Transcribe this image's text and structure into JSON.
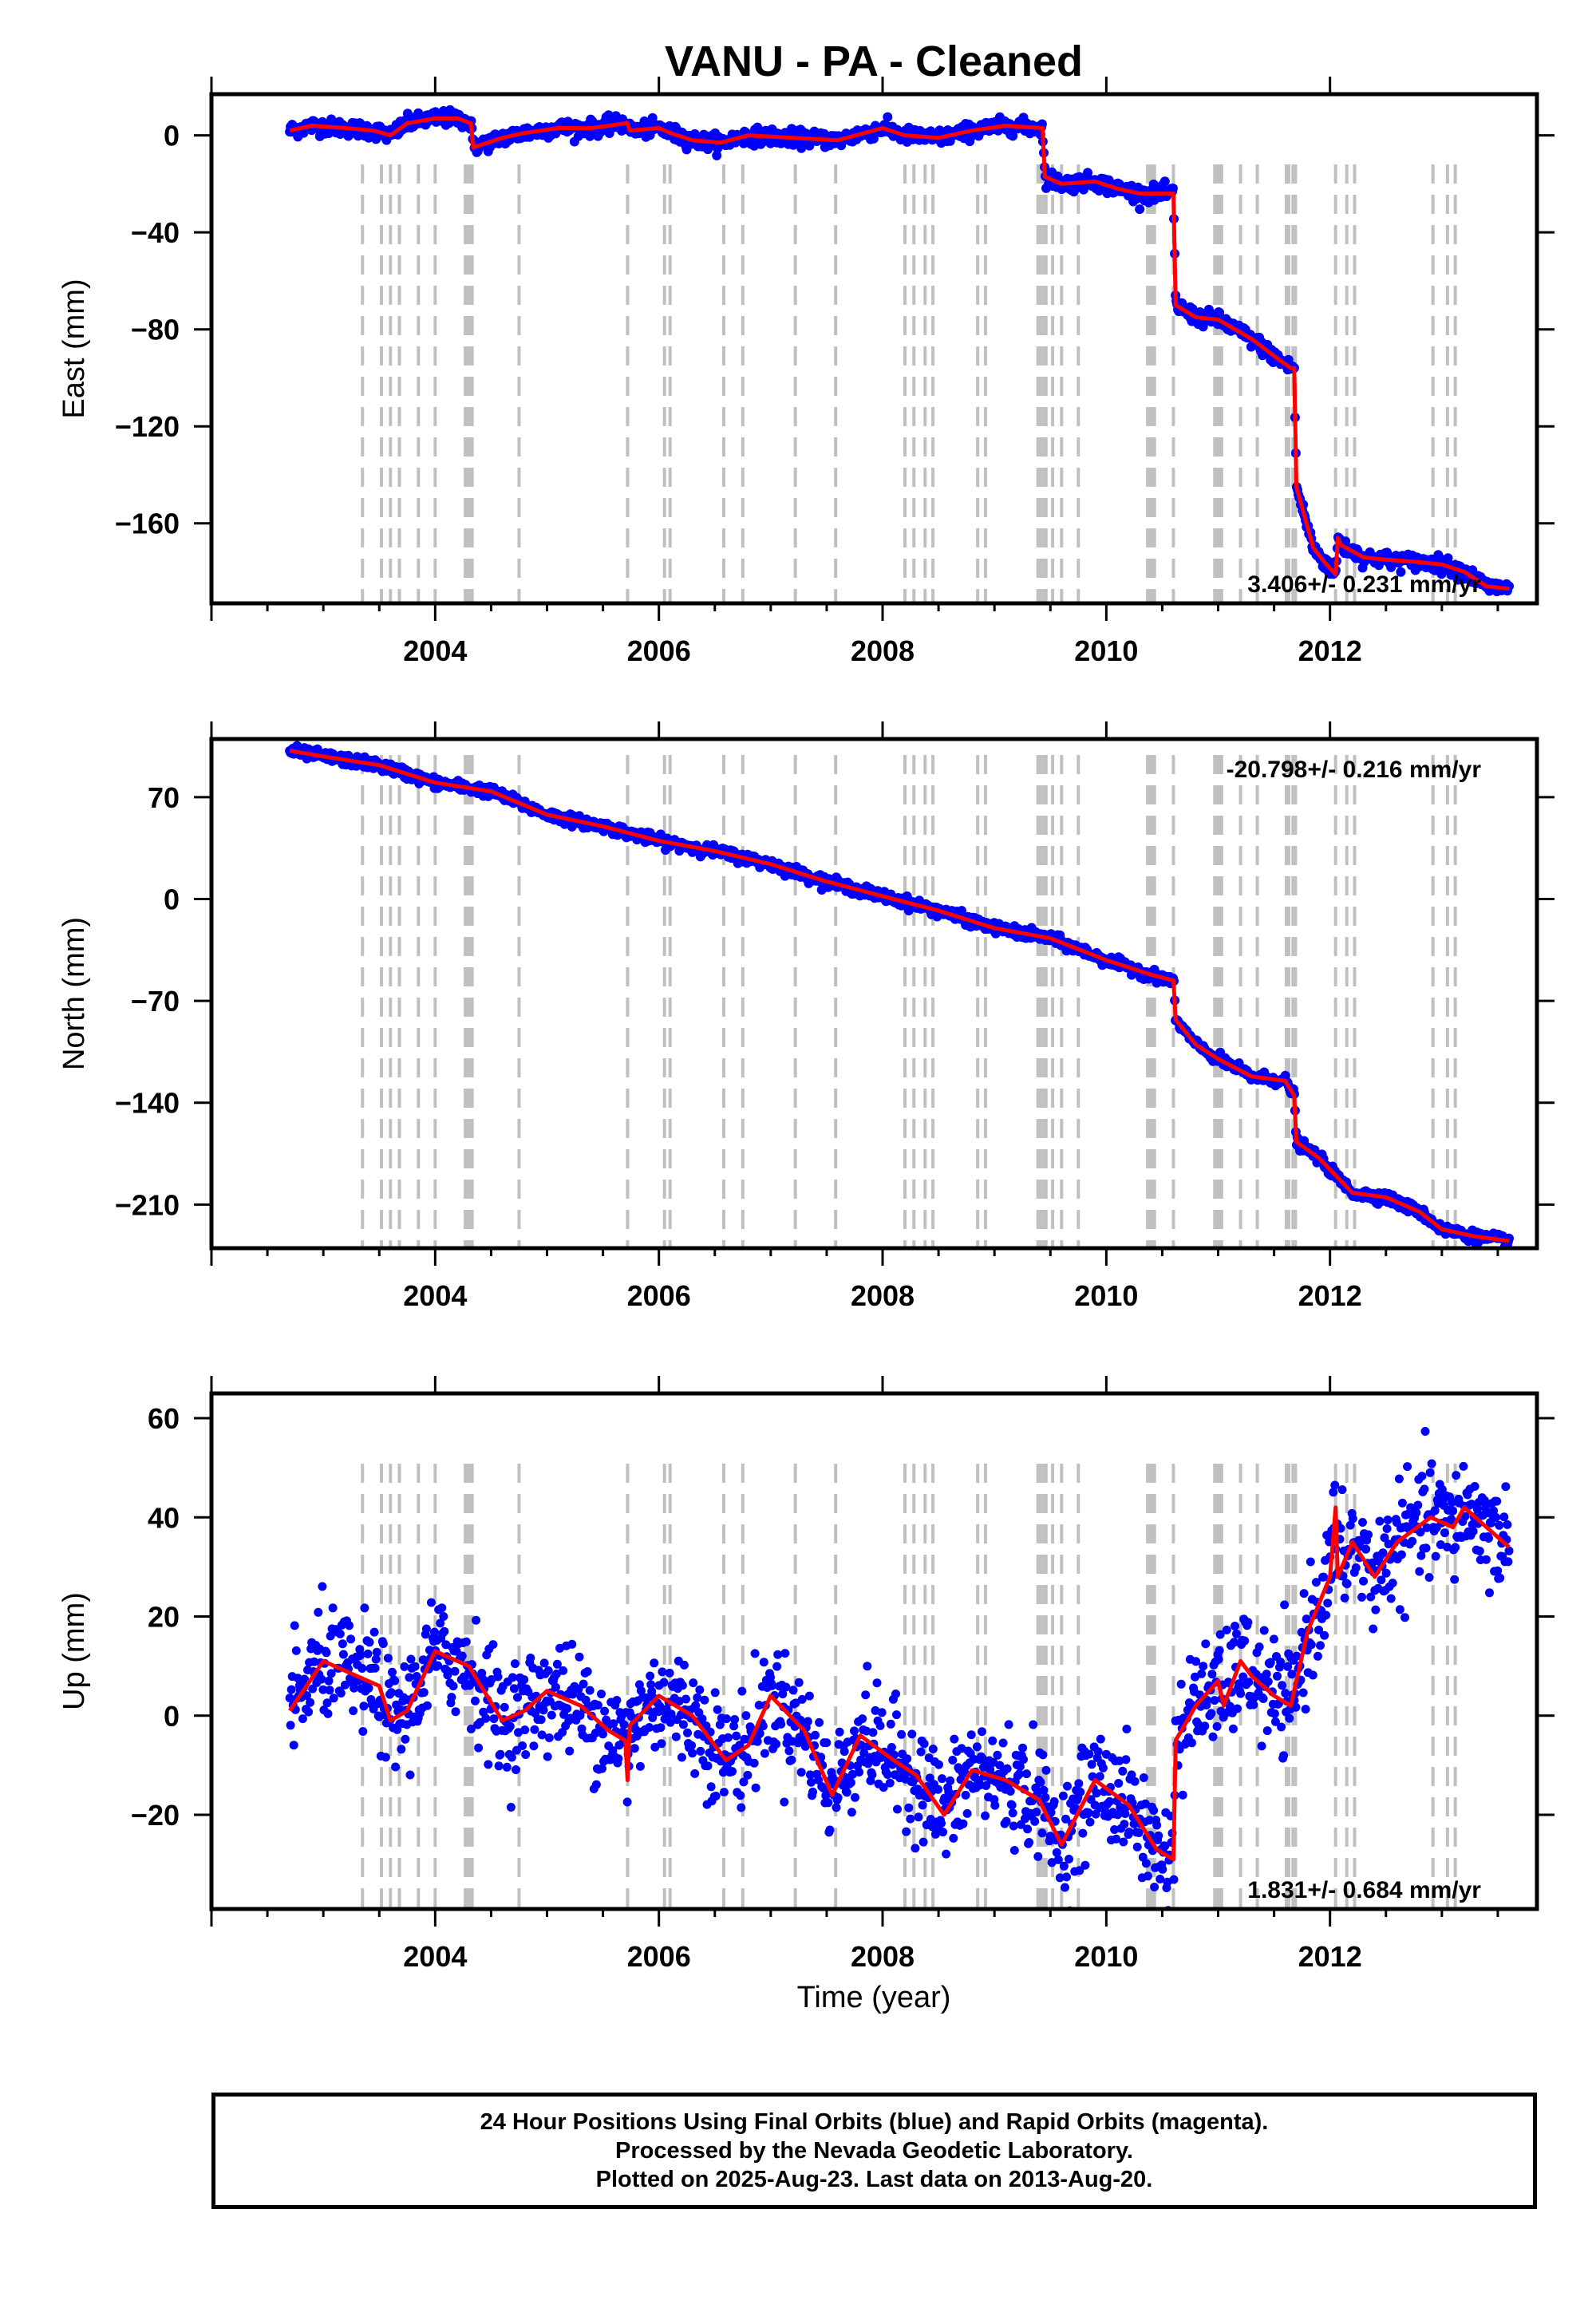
{
  "title": "VANU  - PA - Cleaned",
  "xlabel": "Time (year)",
  "footer": {
    "line1": "24 Hour Positions Using Final Orbits (blue) and Rapid Orbits (magenta).",
    "line2": "Processed by the Nevada Geodetic Laboratory.",
    "line3": "Plotted on 2025-Aug-23. Last data on 2013-Aug-20."
  },
  "colors": {
    "points": "#0000ff",
    "model": "#ff0000",
    "steps": "#c0c0c0",
    "frame": "#000000"
  },
  "chart_data": [
    {
      "type": "scatter",
      "panel": "east",
      "ylabel": "East (mm)",
      "rate_label": "3.406+/- 0.231 mm/yr",
      "rate_position": "bottom-right",
      "xlim": [
        2002.0,
        2013.85
      ],
      "ylim": [
        -193,
        17
      ],
      "xticks": [
        2004,
        2006,
        2008,
        2010,
        2012
      ],
      "yticks": [
        0,
        -40,
        -80,
        -120,
        -160
      ],
      "noise_mm": 1.6,
      "model": [
        [
          2002.7,
          2
        ],
        [
          2002.9,
          4
        ],
        [
          2003.2,
          3
        ],
        [
          2003.45,
          2
        ],
        [
          2003.6,
          0
        ],
        [
          2003.75,
          5
        ],
        [
          2004.0,
          7
        ],
        [
          2004.2,
          7
        ],
        [
          2004.32,
          5
        ],
        [
          2004.34,
          -5
        ],
        [
          2004.6,
          -1
        ],
        [
          2004.8,
          1
        ],
        [
          2005.1,
          3
        ],
        [
          2005.4,
          3
        ],
        [
          2005.7,
          5
        ],
        [
          2005.72,
          5
        ],
        [
          2005.74,
          2
        ],
        [
          2006.0,
          3
        ],
        [
          2006.1,
          1
        ],
        [
          2006.3,
          -2
        ],
        [
          2006.55,
          -3
        ],
        [
          2006.8,
          0
        ],
        [
          2007.2,
          -1
        ],
        [
          2007.6,
          -2
        ],
        [
          2008.0,
          3
        ],
        [
          2008.2,
          0
        ],
        [
          2008.5,
          -1
        ],
        [
          2008.8,
          2
        ],
        [
          2009.1,
          4
        ],
        [
          2009.43,
          3
        ],
        [
          2009.45,
          -17
        ],
        [
          2009.6,
          -20
        ],
        [
          2009.9,
          -19
        ],
        [
          2010.1,
          -22
        ],
        [
          2010.3,
          -24
        ],
        [
          2010.6,
          -24
        ],
        [
          2010.62,
          -70
        ],
        [
          2010.8,
          -75
        ],
        [
          2011.0,
          -76
        ],
        [
          2011.3,
          -84
        ],
        [
          2011.5,
          -91
        ],
        [
          2011.65,
          -96
        ],
        [
          2011.68,
          -96
        ],
        [
          2011.7,
          -145
        ],
        [
          2011.85,
          -170
        ],
        [
          2011.95,
          -176
        ],
        [
          2012.05,
          -181
        ],
        [
          2012.07,
          -166
        ],
        [
          2012.1,
          -169
        ],
        [
          2012.3,
          -174
        ],
        [
          2012.5,
          -175
        ],
        [
          2012.8,
          -176
        ],
        [
          2013.0,
          -177
        ],
        [
          2013.2,
          -180
        ],
        [
          2013.4,
          -186
        ],
        [
          2013.6,
          -187
        ]
      ]
    },
    {
      "type": "scatter",
      "panel": "north",
      "ylabel": "North (mm)",
      "rate_label": "-20.798+/- 0.216 mm/yr",
      "rate_position": "top-right",
      "xlim": [
        2002.0,
        2013.85
      ],
      "ylim": [
        -240,
        110
      ],
      "xticks": [
        2004,
        2006,
        2008,
        2010,
        2012
      ],
      "yticks": [
        70,
        0,
        -70,
        -140,
        -210
      ],
      "noise_mm": 1.8,
      "model": [
        [
          2002.7,
          102
        ],
        [
          2003.0,
          98
        ],
        [
          2003.5,
          92
        ],
        [
          2004.0,
          80
        ],
        [
          2004.5,
          74
        ],
        [
          2005.0,
          58
        ],
        [
          2005.5,
          50
        ],
        [
          2006.0,
          40
        ],
        [
          2006.5,
          33
        ],
        [
          2007.0,
          24
        ],
        [
          2007.5,
          12
        ],
        [
          2008.0,
          2
        ],
        [
          2008.5,
          -8
        ],
        [
          2009.0,
          -20
        ],
        [
          2009.5,
          -27
        ],
        [
          2010.0,
          -42
        ],
        [
          2010.4,
          -52
        ],
        [
          2010.6,
          -56
        ],
        [
          2010.62,
          -83
        ],
        [
          2010.8,
          -100
        ],
        [
          2011.0,
          -110
        ],
        [
          2011.3,
          -122
        ],
        [
          2011.6,
          -125
        ],
        [
          2011.68,
          -135
        ],
        [
          2011.7,
          -167
        ],
        [
          2011.9,
          -178
        ],
        [
          2012.2,
          -202
        ],
        [
          2012.5,
          -205
        ],
        [
          2012.8,
          -215
        ],
        [
          2013.0,
          -227
        ],
        [
          2013.3,
          -232
        ],
        [
          2013.6,
          -235
        ]
      ]
    },
    {
      "type": "scatter",
      "panel": "up",
      "ylabel": "Up (mm)",
      "rate_label": "1.831+/- 0.684 mm/yr",
      "rate_position": "bottom-right",
      "xlim": [
        2002.0,
        2013.85
      ],
      "ylim": [
        -39,
        65
      ],
      "xticks": [
        2004,
        2006,
        2008,
        2010,
        2012
      ],
      "yticks": [
        60,
        40,
        20,
        0,
        -20
      ],
      "noise_mm": 5.5,
      "model": [
        [
          2002.7,
          1
        ],
        [
          2003.0,
          11
        ],
        [
          2003.3,
          8
        ],
        [
          2003.5,
          6
        ],
        [
          2003.6,
          -1
        ],
        [
          2003.75,
          1
        ],
        [
          2004.0,
          13
        ],
        [
          2004.3,
          10
        ],
        [
          2004.6,
          -1
        ],
        [
          2004.8,
          1
        ],
        [
          2005.0,
          5
        ],
        [
          2005.3,
          2
        ],
        [
          2005.55,
          -3
        ],
        [
          2005.7,
          -5
        ],
        [
          2005.72,
          -13
        ],
        [
          2005.74,
          -2
        ],
        [
          2006.0,
          4
        ],
        [
          2006.3,
          0
        ],
        [
          2006.6,
          -9
        ],
        [
          2006.8,
          -6
        ],
        [
          2007.0,
          4
        ],
        [
          2007.3,
          -3
        ],
        [
          2007.55,
          -16
        ],
        [
          2007.8,
          -4
        ],
        [
          2008.1,
          -9
        ],
        [
          2008.3,
          -12
        ],
        [
          2008.55,
          -20
        ],
        [
          2008.8,
          -11
        ],
        [
          2009.1,
          -13
        ],
        [
          2009.4,
          -17
        ],
        [
          2009.6,
          -26
        ],
        [
          2009.9,
          -13
        ],
        [
          2010.2,
          -18
        ],
        [
          2010.45,
          -27
        ],
        [
          2010.6,
          -29
        ],
        [
          2010.62,
          -5
        ],
        [
          2010.8,
          2
        ],
        [
          2011.0,
          7
        ],
        [
          2011.05,
          2
        ],
        [
          2011.2,
          11
        ],
        [
          2011.3,
          8
        ],
        [
          2011.5,
          4
        ],
        [
          2011.65,
          2
        ],
        [
          2011.8,
          17
        ],
        [
          2012.0,
          28
        ],
        [
          2012.05,
          42
        ],
        [
          2012.07,
          28
        ],
        [
          2012.2,
          35
        ],
        [
          2012.4,
          28
        ],
        [
          2012.6,
          35
        ],
        [
          2012.9,
          40
        ],
        [
          2013.1,
          38
        ],
        [
          2013.2,
          42
        ],
        [
          2013.45,
          37
        ],
        [
          2013.6,
          34
        ]
      ]
    }
  ],
  "step_epochs": [
    2003.35,
    2003.52,
    2003.6,
    2003.68,
    2003.85,
    2004.0,
    2004.28,
    2004.32,
    2004.75,
    2005.72,
    2006.05,
    2006.1,
    2006.58,
    2006.75,
    2007.22,
    2007.58,
    2008.2,
    2008.28,
    2008.38,
    2008.45,
    2008.85,
    2008.92,
    2009.4,
    2009.45,
    2009.52,
    2009.6,
    2009.75,
    2010.38,
    2010.42,
    2010.6,
    2010.98,
    2011.02,
    2011.2,
    2011.35,
    2011.62,
    2011.68,
    2012.05,
    2012.15,
    2012.22,
    2012.92,
    2013.05,
    2013.12
  ],
  "step_emphasis": [
    2004.3,
    2009.42,
    2010.4,
    2011.0,
    2011.65
  ]
}
